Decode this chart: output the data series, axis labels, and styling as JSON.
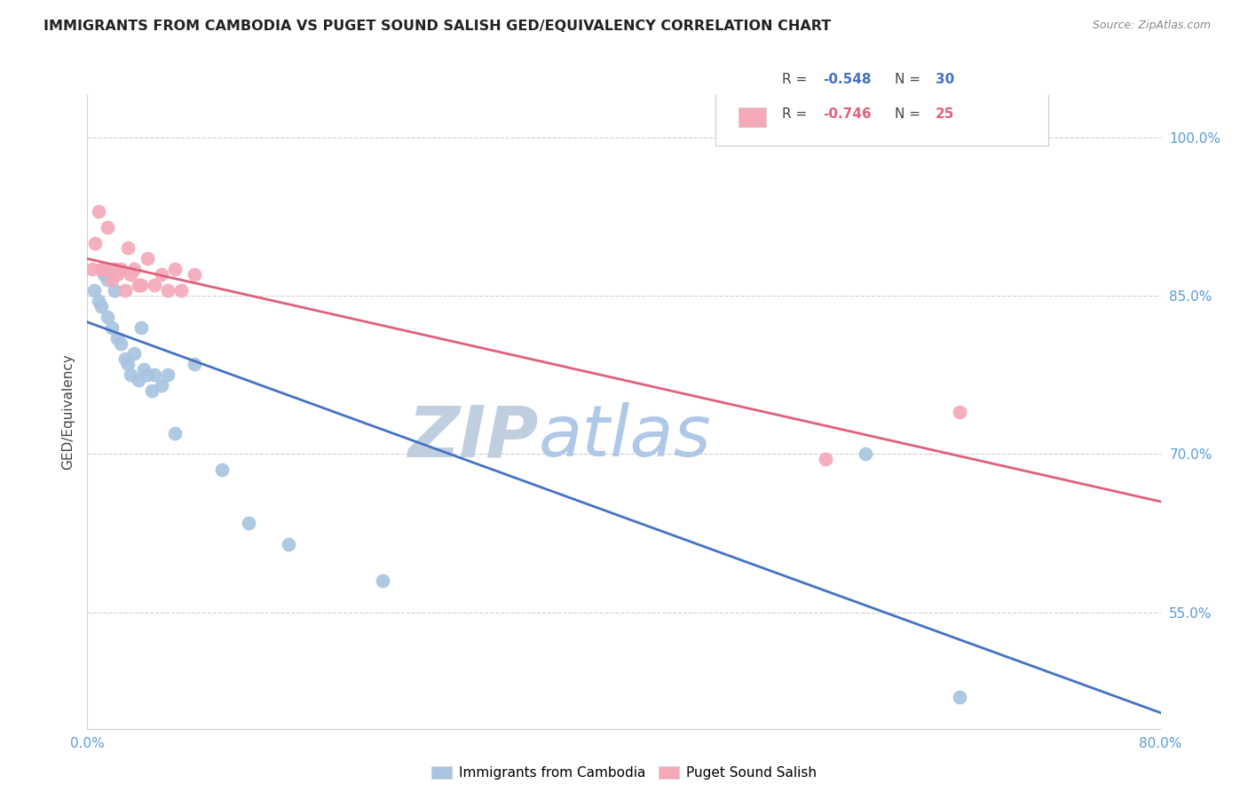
{
  "title": "IMMIGRANTS FROM CAMBODIA VS PUGET SOUND SALISH GED/EQUIVALENCY CORRELATION CHART",
  "source": "Source: ZipAtlas.com",
  "ylabel": "GED/Equivalency",
  "legend_label_blue": "Immigrants from Cambodia",
  "legend_label_pink": "Puget Sound Salish",
  "R_blue": -0.548,
  "N_blue": 30,
  "R_pink": -0.746,
  "N_pink": 25,
  "xlim": [
    0.0,
    0.8
  ],
  "ylim": [
    0.44,
    1.04
  ],
  "right_ytick_labels": [
    "55.0%",
    "70.0%",
    "85.0%",
    "100.0%"
  ],
  "right_ytick_values": [
    0.55,
    0.7,
    0.85,
    1.0
  ],
  "xtick_values": [
    0.0,
    0.1,
    0.2,
    0.3,
    0.4,
    0.5,
    0.6,
    0.7,
    0.8
  ],
  "blue_color": "#a8c4e0",
  "pink_color": "#f4a8b8",
  "blue_line_color": "#4472c4",
  "pink_line_color": "#e0607a",
  "watermark_zip_color": "#c8d8e8",
  "watermark_atlas_color": "#b8cce4",
  "blue_scatter_x": [
    0.005,
    0.008,
    0.01,
    0.012,
    0.015,
    0.015,
    0.018,
    0.02,
    0.022,
    0.025,
    0.028,
    0.03,
    0.032,
    0.035,
    0.038,
    0.04,
    0.042,
    0.045,
    0.048,
    0.05,
    0.055,
    0.06,
    0.065,
    0.08,
    0.1,
    0.12,
    0.15,
    0.22,
    0.58,
    0.65
  ],
  "blue_scatter_y": [
    0.855,
    0.845,
    0.84,
    0.87,
    0.83,
    0.865,
    0.82,
    0.855,
    0.81,
    0.805,
    0.79,
    0.785,
    0.775,
    0.795,
    0.77,
    0.82,
    0.78,
    0.775,
    0.76,
    0.775,
    0.765,
    0.775,
    0.72,
    0.785,
    0.685,
    0.635,
    0.615,
    0.58,
    0.7,
    0.47
  ],
  "pink_scatter_x": [
    0.004,
    0.006,
    0.008,
    0.01,
    0.012,
    0.015,
    0.018,
    0.02,
    0.022,
    0.025,
    0.028,
    0.03,
    0.032,
    0.035,
    0.038,
    0.04,
    0.045,
    0.05,
    0.055,
    0.06,
    0.065,
    0.07,
    0.08,
    0.55,
    0.65
  ],
  "pink_scatter_y": [
    0.875,
    0.9,
    0.93,
    0.875,
    0.875,
    0.915,
    0.865,
    0.875,
    0.87,
    0.875,
    0.855,
    0.895,
    0.87,
    0.875,
    0.86,
    0.86,
    0.885,
    0.86,
    0.87,
    0.855,
    0.875,
    0.855,
    0.87,
    0.695,
    0.74
  ],
  "blue_trend_x": [
    0.0,
    0.8
  ],
  "blue_trend_y": [
    0.825,
    0.455
  ],
  "pink_trend_x": [
    0.0,
    0.8
  ],
  "pink_trend_y": [
    0.885,
    0.655
  ]
}
